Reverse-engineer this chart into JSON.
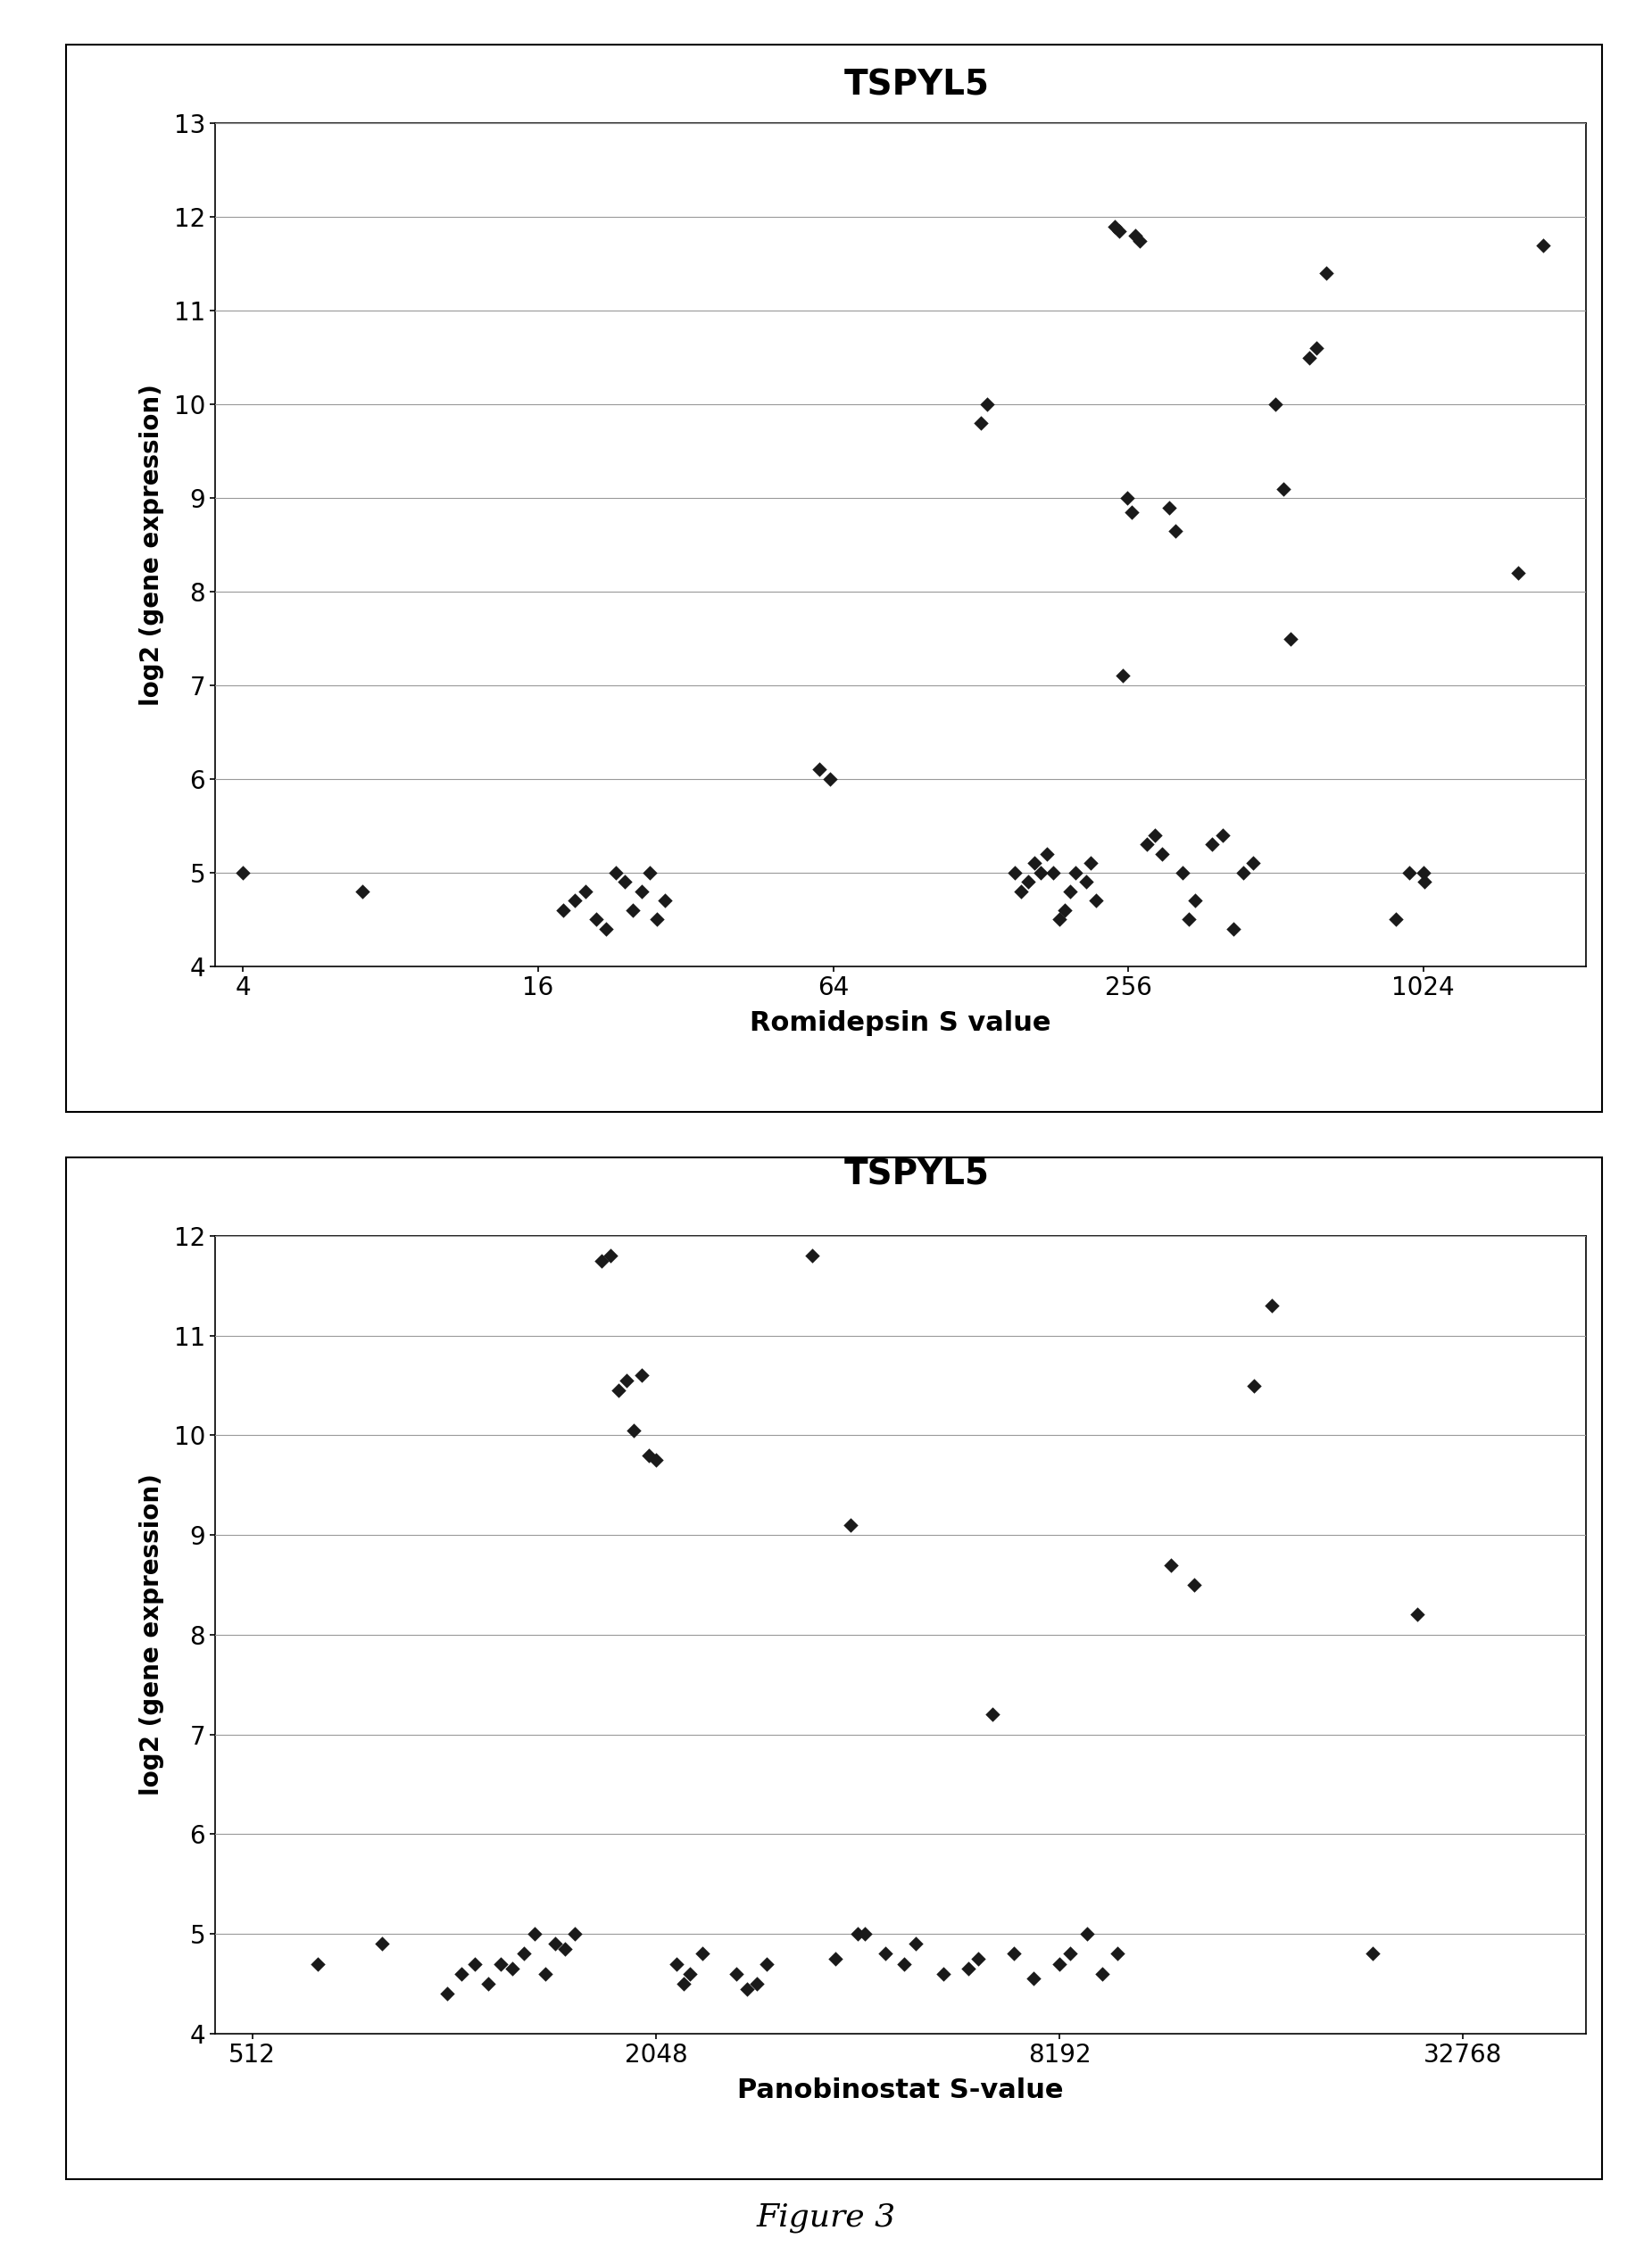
{
  "chart1": {
    "title": "TSPYL5",
    "xlabel": "Romidepsin S value",
    "ylabel": "log2 (gene expression)",
    "xlim_log": [
      3.5,
      2200
    ],
    "ylim": [
      4,
      13
    ],
    "yticks": [
      4,
      5,
      6,
      7,
      8,
      9,
      10,
      11,
      12,
      13
    ],
    "xticks": [
      4,
      16,
      64,
      256,
      1024
    ],
    "xtick_labels": [
      "4",
      "16",
      "64",
      "256",
      "1024"
    ],
    "x": [
      4,
      7,
      18,
      19,
      20,
      21,
      22,
      23,
      24,
      25,
      26,
      27,
      28,
      29,
      60,
      63,
      128,
      132,
      150,
      155,
      160,
      165,
      170,
      175,
      180,
      185,
      190,
      195,
      200,
      210,
      215,
      220,
      240,
      245,
      250,
      255,
      260,
      265,
      270,
      280,
      290,
      300,
      310,
      320,
      330,
      340,
      350,
      380,
      400,
      420,
      440,
      460,
      512,
      530,
      550,
      600,
      620,
      650,
      900,
      960,
      1024,
      1030,
      1600,
      1800
    ],
    "y": [
      5.0,
      4.8,
      4.6,
      4.7,
      4.8,
      4.5,
      4.4,
      5.0,
      4.9,
      4.6,
      4.8,
      5.0,
      4.5,
      4.7,
      6.1,
      6.0,
      9.8,
      10.0,
      5.0,
      4.8,
      4.9,
      5.1,
      5.0,
      5.2,
      5.0,
      4.5,
      4.6,
      4.8,
      5.0,
      4.9,
      5.1,
      4.7,
      11.9,
      11.85,
      7.1,
      9.0,
      8.85,
      11.8,
      11.75,
      5.3,
      5.4,
      5.2,
      8.9,
      8.65,
      5.0,
      4.5,
      4.7,
      5.3,
      5.4,
      4.4,
      5.0,
      5.1,
      10.0,
      9.1,
      7.5,
      10.5,
      10.6,
      11.4,
      4.5,
      5.0,
      5.0,
      4.9,
      8.2,
      11.7
    ]
  },
  "chart2": {
    "title": "TSPYL5",
    "xlabel": "Panobinostat S-value",
    "ylabel": "log2 (gene expression)",
    "xlim_log": [
      450,
      50000
    ],
    "ylim": [
      4,
      12
    ],
    "yticks": [
      4,
      5,
      6,
      7,
      8,
      9,
      10,
      11,
      12
    ],
    "xticks": [
      512,
      2048,
      8192,
      32768
    ],
    "xtick_labels": [
      "512",
      "2048",
      "8192",
      "32768"
    ],
    "x": [
      640,
      800,
      1000,
      1050,
      1100,
      1150,
      1200,
      1250,
      1300,
      1350,
      1400,
      1450,
      1500,
      1550,
      1700,
      1750,
      1800,
      1850,
      1900,
      1950,
      2000,
      2050,
      2200,
      2250,
      2300,
      2400,
      2700,
      2800,
      2900,
      3000,
      3500,
      3800,
      4000,
      4100,
      4200,
      4500,
      4800,
      5000,
      5500,
      6000,
      6200,
      6500,
      7000,
      7500,
      8192,
      8500,
      9000,
      9500,
      10000,
      12000,
      13000,
      16000,
      17000,
      24000,
      28000
    ],
    "y": [
      4.7,
      4.9,
      4.4,
      4.6,
      4.7,
      4.5,
      4.7,
      4.65,
      4.8,
      5.0,
      4.6,
      4.9,
      4.85,
      5.0,
      11.75,
      11.8,
      10.45,
      10.55,
      10.05,
      10.6,
      9.8,
      9.75,
      4.7,
      4.5,
      4.6,
      4.8,
      4.6,
      4.45,
      4.5,
      4.7,
      11.8,
      4.75,
      9.1,
      5.0,
      5.0,
      4.8,
      4.7,
      4.9,
      4.6,
      4.65,
      4.75,
      7.2,
      4.8,
      4.55,
      4.7,
      4.8,
      5.0,
      4.6,
      4.8,
      8.7,
      8.5,
      10.5,
      11.3,
      4.8,
      8.2
    ]
  },
  "figure_caption": "Figure 3",
  "bg_color": "#ffffff",
  "marker_color": "#1a1a1a",
  "marker_size": 70,
  "font_family": "DejaVu Sans"
}
